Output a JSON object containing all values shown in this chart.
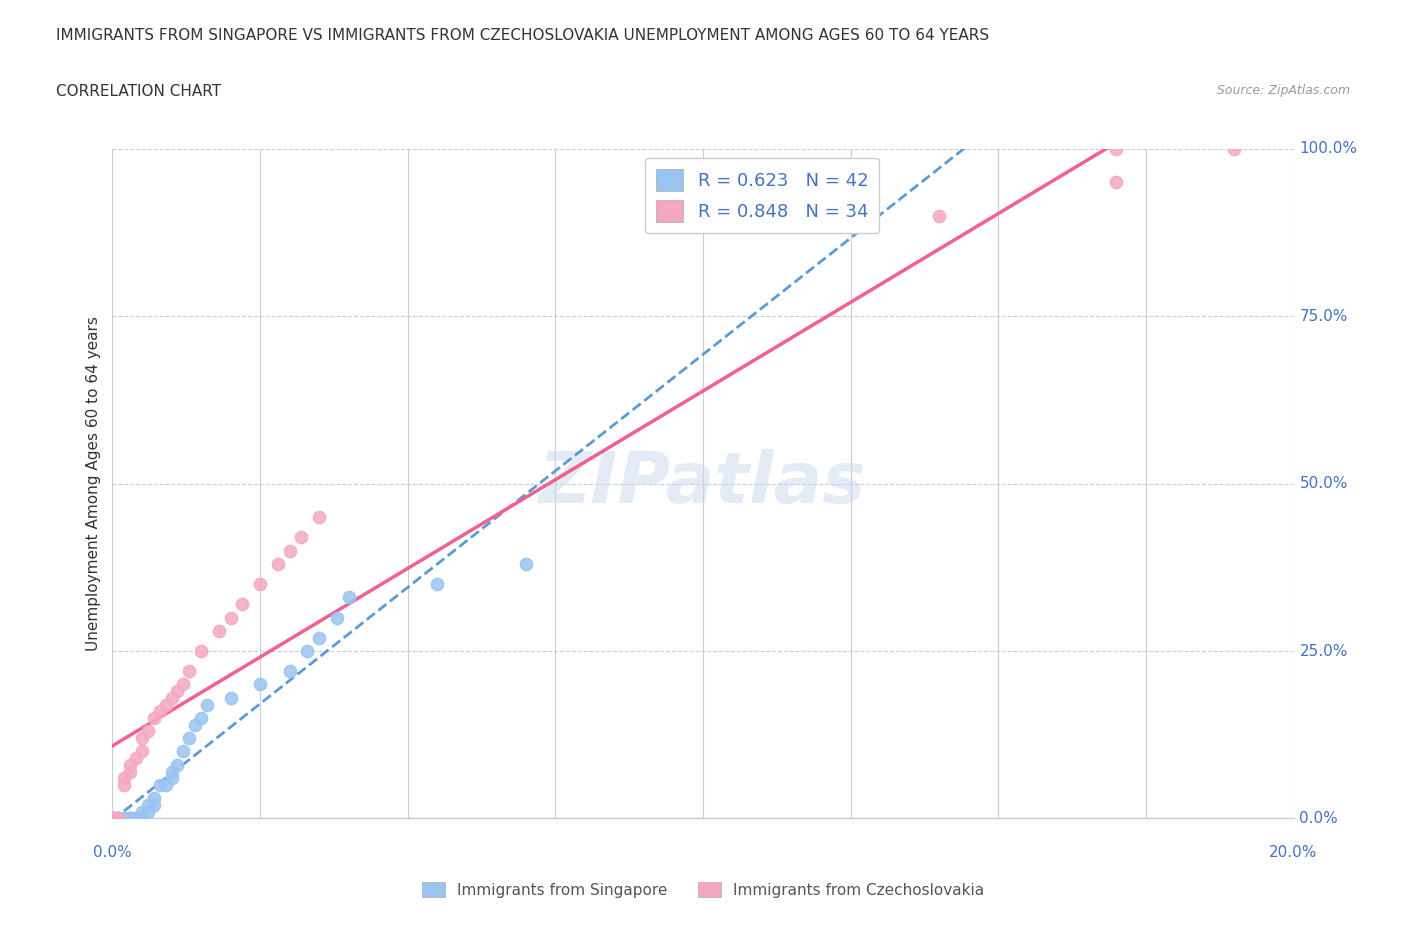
{
  "title_line1": "IMMIGRANTS FROM SINGAPORE VS IMMIGRANTS FROM CZECHOSLOVAKIA UNEMPLOYMENT AMONG AGES 60 TO 64 YEARS",
  "title_line2": "CORRELATION CHART",
  "source_text": "Source: ZipAtlas.com",
  "ylabel": "Unemployment Among Ages 60 to 64 years",
  "y_tick_labels": [
    "0.0%",
    "25.0%",
    "50.0%",
    "75.0%",
    "100.0%"
  ],
  "y_tick_values": [
    0,
    0.25,
    0.5,
    0.75,
    1.0
  ],
  "xlim": [
    0,
    0.2
  ],
  "ylim": [
    0,
    1.0
  ],
  "legend_label1": "Immigrants from Singapore",
  "legend_label2": "Immigrants from Czechoslovakia",
  "R1": 0.623,
  "N1": 42,
  "R2": 0.848,
  "N2": 34,
  "color_singapore": "#99C4F0",
  "color_czech": "#F4A8C0",
  "watermark": "ZIPatlas",
  "singapore_x": [
    0.0,
    0.0,
    0.0,
    0.0,
    0.0,
    0.0,
    0.001,
    0.001,
    0.001,
    0.002,
    0.002,
    0.002,
    0.003,
    0.003,
    0.004,
    0.004,
    0.005,
    0.005,
    0.005,
    0.006,
    0.006,
    0.007,
    0.007,
    0.008,
    0.009,
    0.01,
    0.01,
    0.011,
    0.012,
    0.013,
    0.014,
    0.015,
    0.016,
    0.02,
    0.025,
    0.03,
    0.033,
    0.035,
    0.038,
    0.04,
    0.055,
    0.07
  ],
  "singapore_y": [
    0.0,
    0.0,
    0.0,
    0.0,
    0.0,
    0.0,
    0.0,
    0.0,
    0.0,
    0.0,
    0.0,
    0.0,
    0.0,
    0.0,
    0.0,
    0.0,
    0.0,
    0.0,
    0.01,
    0.01,
    0.02,
    0.02,
    0.03,
    0.05,
    0.05,
    0.06,
    0.07,
    0.08,
    0.1,
    0.12,
    0.14,
    0.15,
    0.17,
    0.18,
    0.2,
    0.22,
    0.25,
    0.27,
    0.3,
    0.33,
    0.35,
    0.38
  ],
  "czech_x": [
    0.0,
    0.0,
    0.0,
    0.0,
    0.001,
    0.001,
    0.002,
    0.002,
    0.003,
    0.003,
    0.004,
    0.005,
    0.005,
    0.006,
    0.007,
    0.008,
    0.009,
    0.01,
    0.011,
    0.012,
    0.013,
    0.015,
    0.018,
    0.02,
    0.022,
    0.025,
    0.028,
    0.03,
    0.032,
    0.035,
    0.14,
    0.17,
    0.17,
    0.19
  ],
  "czech_y": [
    0.0,
    0.0,
    0.0,
    0.0,
    0.0,
    0.0,
    0.05,
    0.06,
    0.07,
    0.08,
    0.09,
    0.1,
    0.12,
    0.13,
    0.15,
    0.16,
    0.17,
    0.18,
    0.19,
    0.2,
    0.22,
    0.25,
    0.28,
    0.3,
    0.32,
    0.35,
    0.38,
    0.4,
    0.42,
    0.45,
    0.9,
    0.95,
    1.0,
    1.0
  ]
}
